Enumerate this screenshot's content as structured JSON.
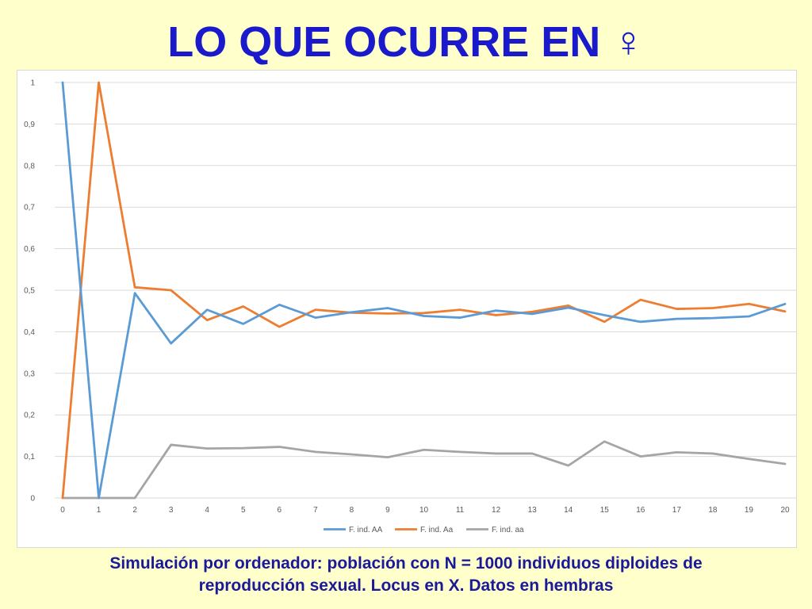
{
  "title": "LO QUE OCURRE EN ♀",
  "caption": {
    "line1": "Simulación por ordenador: población con N = 1000 individuos diploides de",
    "line2": "reproducción sexual. Locus en X. Datos en hembras"
  },
  "chart_data": {
    "type": "line",
    "x": [
      0,
      1,
      2,
      3,
      4,
      5,
      6,
      7,
      8,
      9,
      10,
      11,
      12,
      13,
      14,
      15,
      16,
      17,
      18,
      19,
      20
    ],
    "ylim": [
      0,
      1
    ],
    "yticks": [
      "0",
      "0,1",
      "0,2",
      "0,3",
      "0,4",
      "0,5",
      "0,6",
      "0,7",
      "0,8",
      "0,9",
      "1"
    ],
    "ytick_values": [
      0,
      0.1,
      0.2,
      0.3,
      0.4,
      0.5,
      0.6,
      0.7,
      0.8,
      0.9,
      1
    ],
    "grid": true,
    "legend_position": "bottom",
    "series": [
      {
        "name": "F. ind. AA",
        "color": "#5b9bd5",
        "values": [
          1,
          0,
          0.493,
          0.372,
          0.453,
          0.419,
          0.465,
          0.434,
          0.447,
          0.457,
          0.438,
          0.434,
          0.451,
          0.443,
          0.458,
          0.44,
          0.424,
          0.431,
          0.433,
          0.437,
          0.467
        ]
      },
      {
        "name": "F. ind. Aa",
        "color": "#ed7d31",
        "values": [
          0,
          1,
          0.507,
          0.5,
          0.428,
          0.461,
          0.412,
          0.453,
          0.446,
          0.444,
          0.445,
          0.453,
          0.44,
          0.448,
          0.463,
          0.424,
          0.477,
          0.455,
          0.457,
          0.467,
          0.449
        ]
      },
      {
        "name": "F. ind. aa",
        "color": "#a5a5a5",
        "values": [
          0,
          0,
          0,
          0.128,
          0.119,
          0.12,
          0.123,
          0.111,
          0.105,
          0.098,
          0.116,
          0.111,
          0.107,
          0.107,
          0.078,
          0.136,
          0.1,
          0.11,
          0.107,
          0.094,
          0.082
        ]
      }
    ]
  }
}
